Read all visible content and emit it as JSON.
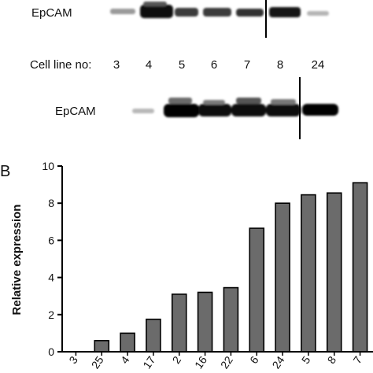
{
  "panel_a": {
    "blot_top_label": "EpCAM",
    "cell_line_label": "Cell line no:",
    "cell_lines": [
      "3",
      "4",
      "5",
      "6",
      "7",
      "8",
      "24"
    ],
    "blot_bottom_label": "EpCAM"
  },
  "panel_b": {
    "letter": "B"
  },
  "colors": {
    "bar_fill": "#6b6b6b",
    "bar_stroke": "#000000",
    "band_dark": "#0a0a0a"
  },
  "chart_data": {
    "type": "bar",
    "title": "",
    "xlabel": "",
    "ylabel": "Relative expression",
    "ylim": [
      0,
      10
    ],
    "yticks": [
      0,
      2,
      4,
      6,
      8,
      10
    ],
    "grid": false,
    "categories": [
      "3",
      "25",
      "4",
      "17",
      "2",
      "16",
      "22",
      "6",
      "24",
      "5",
      "8",
      "7"
    ],
    "values": [
      0.02,
      0.6,
      1.0,
      1.75,
      3.1,
      3.2,
      3.45,
      6.65,
      8.0,
      8.45,
      8.55,
      9.1
    ]
  }
}
